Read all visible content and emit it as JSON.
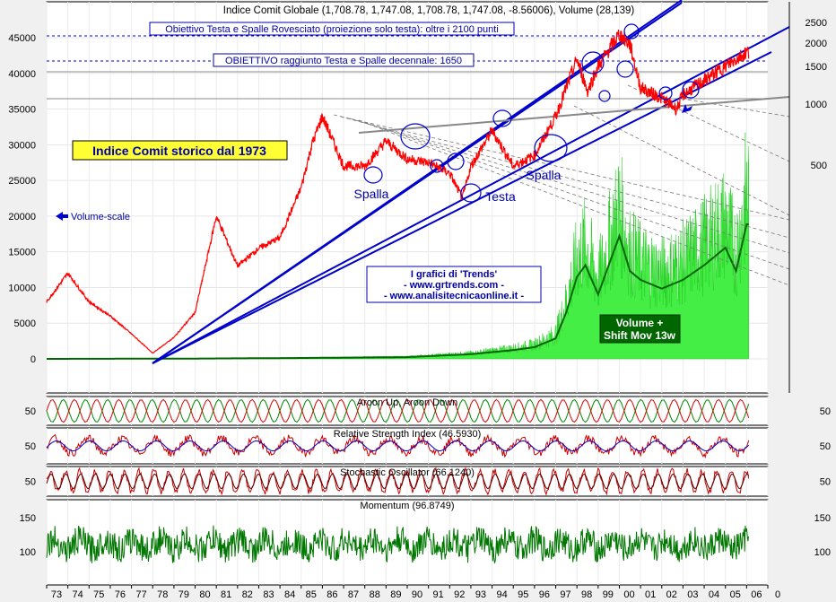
{
  "chart_data": {
    "type": "line",
    "title": "Indice Comit Globale (1,708.78, 1,747.08, 1,708.78, 1,747.08, -8.56006), Volume (28,139)",
    "inner_title": "Indice Comit storico dal 1973",
    "left_axis_ticks": [
      "0",
      "5000",
      "10000",
      "15000",
      "20000",
      "25000",
      "30000",
      "35000",
      "40000",
      "45000"
    ],
    "right_axis_ticks": [
      "2500",
      "2000",
      "1500",
      "1000",
      "500"
    ],
    "x_tick_labels": [
      "73",
      "74",
      "75",
      "76",
      "77",
      "78",
      "79",
      "80",
      "81",
      "82",
      "83",
      "84",
      "85",
      "86",
      "87",
      "88",
      "89",
      "90",
      "91",
      "92",
      "93",
      "94",
      "95",
      "96",
      "97",
      "98",
      "99",
      "00",
      "01",
      "02",
      "03",
      "04",
      "05",
      "06",
      "0"
    ],
    "price_series": {
      "name": "Indice Comit Globale",
      "years": [
        1973,
        1974,
        1975,
        1976,
        1977,
        1978,
        1979,
        1980,
        1981,
        1982,
        1983,
        1984,
        1985,
        1985.5,
        1986,
        1987,
        1988,
        1989,
        1990,
        1991,
        1992,
        1992.6,
        1993,
        1994,
        1995,
        1996,
        1997,
        1998,
        1998.5,
        1999,
        2000,
        2000.5,
        2001,
        2002,
        2002.7,
        2003,
        2004,
        2005,
        2006
      ],
      "values": [
        8000,
        12000,
        8000,
        6000,
        3500,
        800,
        3000,
        6500,
        20000,
        13000,
        15500,
        17000,
        24000,
        30000,
        34000,
        27000,
        27000,
        30500,
        28000,
        27500,
        26000,
        22500,
        27000,
        32000,
        27000,
        28500,
        34000,
        42000,
        37500,
        41000,
        45500,
        44000,
        38000,
        36500,
        35000,
        37000,
        39000,
        41000,
        43000
      ]
    },
    "volume_series": {
      "name": "Volume",
      "years": [
        1973,
        1980,
        1985,
        1990,
        1993,
        1995,
        1996,
        1997,
        1997.5,
        1998,
        1998.4,
        1999,
        2000,
        2000.5,
        2001,
        2002,
        2003,
        2004,
        2005,
        2005.5,
        2006
      ],
      "values": [
        0,
        50,
        150,
        300,
        800,
        1500,
        2000,
        3500,
        8000,
        14000,
        16000,
        11000,
        21000,
        15000,
        13500,
        12000,
        13500,
        16000,
        19000,
        15000,
        23000
      ]
    },
    "annotations": {
      "target_1": "Obiettivo Testa e Spalle Rovesciato (proiezione solo testa): oltre i 2100 punti",
      "target_2": "OBIETTIVO raggiunto Testa e Spalle decennale: 1650",
      "spalla": "Spalla",
      "testa": "Testa",
      "volume_scale": "Volume-scale",
      "trends_line1": "I grafici di 'Trends'",
      "trends_line2": "- www.grtrends.com -",
      "trends_line3": "- www.analisitecnicaonline.it -",
      "volume_box_line1": "Volume +",
      "volume_box_line2": "Shift Mov 13w"
    },
    "indicators": [
      {
        "title": "Aroon Up, Aroon Down",
        "ticks": [
          "50"
        ]
      },
      {
        "title": "Relative Strength Index (46.5930)",
        "ticks": [
          "50"
        ]
      },
      {
        "title": "Stochastic Oscillator (66.1240)",
        "ticks": [
          "50"
        ]
      },
      {
        "title": "Momentum (96.8749)",
        "ticks": [
          "150",
          "100"
        ]
      }
    ],
    "colors": {
      "price": "#ff0000",
      "volume_fill": "#44ee44",
      "volume_ma": "#006600",
      "trendline": "#0000cc",
      "background": "#ffffff",
      "frame": "#f0f0f0"
    }
  }
}
